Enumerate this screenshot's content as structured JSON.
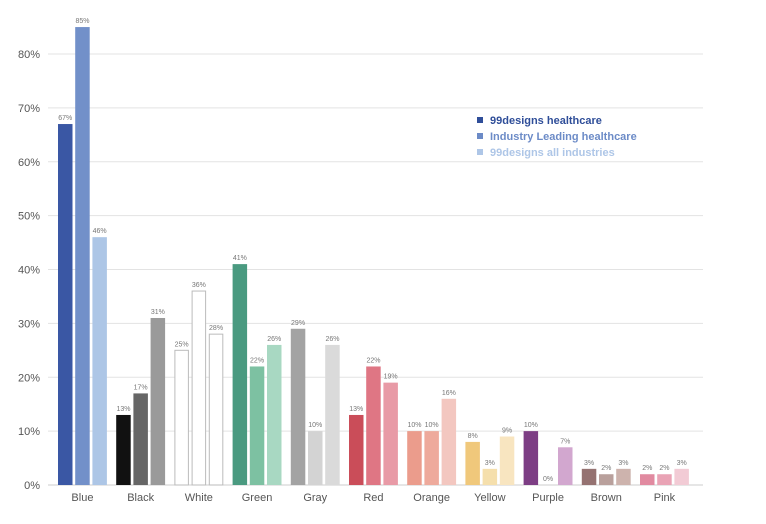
{
  "chart_data": {
    "type": "bar",
    "title": "",
    "xlabel": "",
    "ylabel": "",
    "ylim": [
      0,
      85
    ],
    "yticks": [
      0,
      10,
      20,
      30,
      40,
      50,
      60,
      70,
      80
    ],
    "ytick_labels": [
      "0%",
      "10%",
      "20%",
      "30%",
      "40%",
      "50%",
      "60%",
      "70%",
      "80%"
    ],
    "grid": true,
    "legend_position": "top-right",
    "categories": [
      "Blue",
      "Black",
      "White",
      "Green",
      "Gray",
      "Red",
      "Orange",
      "Yellow",
      "Purple",
      "Brown",
      "Pink"
    ],
    "series": [
      {
        "name": "99designs healthcare",
        "values": [
          67,
          13,
          25,
          41,
          29,
          13,
          10,
          8,
          10,
          3,
          2
        ],
        "labels": [
          "67%",
          "13%",
          "25%",
          "41%",
          "29%",
          "13%",
          "10%",
          "8%",
          "10%",
          "3%",
          "2%"
        ]
      },
      {
        "name": "Industry Leading healthcare",
        "values": [
          85,
          17,
          36,
          22,
          10,
          22,
          10,
          3,
          0,
          2,
          2
        ],
        "labels": [
          "85%",
          "17%",
          "36%",
          "22%",
          "10%",
          "22%",
          "10%",
          "3%",
          "0%",
          "2%",
          "2%"
        ]
      },
      {
        "name": "99designs all industries",
        "values": [
          46,
          31,
          28,
          26,
          26,
          19,
          16,
          9,
          7,
          3,
          3
        ],
        "labels": [
          "46%",
          "31%",
          "28%",
          "26%",
          "26%",
          "19%",
          "16%",
          "9%",
          "7%",
          "3%",
          "3%"
        ]
      }
    ],
    "bar_colors": [
      [
        "#3a57a4",
        "#7290c9",
        "#adc6e6"
      ],
      [
        "#111111",
        "#666666",
        "#9a9a9a"
      ],
      [
        "#ffffff",
        "#ffffff",
        "#ffffff"
      ],
      [
        "#4a9a80",
        "#7dc1a2",
        "#a8d8c2"
      ],
      [
        "#a3a3a3",
        "#d3d3d3",
        "#dadada"
      ],
      [
        "#ca4d59",
        "#df7684",
        "#e89aa6"
      ],
      [
        "#eb9c8c",
        "#eeaa9c",
        "#f3c7c0"
      ],
      [
        "#f0c87b",
        "#f5dfac",
        "#f8e5c0"
      ],
      [
        "#7d3e84",
        "#c58fc3",
        "#d2a7cf"
      ],
      [
        "#957271",
        "#b9a09c",
        "#cdb3ad"
      ],
      [
        "#e18aa0",
        "#e9a3b5",
        "#f2cbd5"
      ]
    ],
    "outline_colors": [
      null,
      null,
      "#bbbbbb",
      null,
      null,
      null,
      null,
      null,
      null,
      null,
      null
    ],
    "legend_colors": [
      "#2f4e99",
      "#6c8bc7",
      "#aec6e7"
    ]
  }
}
